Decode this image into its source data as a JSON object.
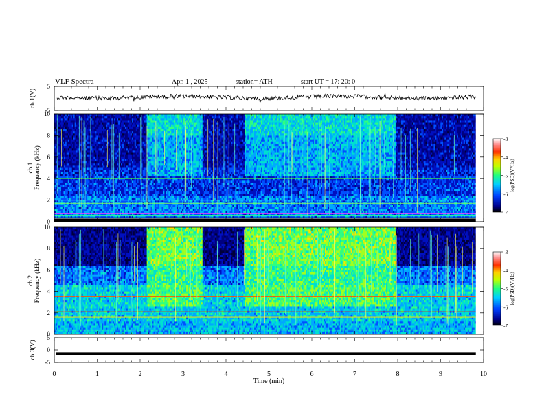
{
  "header": {
    "title": "VLF  Spectra",
    "date": "Apr. 1  , 2025",
    "station": "station= ATH",
    "start": "start  UT  =    17: 20: 0"
  },
  "chart_data": [
    {
      "type": "line",
      "name": "ch1-waveform",
      "ylabel": "ch.1(V)",
      "ylim": [
        -5,
        5
      ],
      "yticks": [
        "5",
        "-5"
      ],
      "xlim": [
        0,
        10
      ]
    },
    {
      "type": "heatmap",
      "name": "ch1-spectrogram",
      "ylabel": "ch.1\nFrequency  (kHz)",
      "ylim": [
        0,
        10
      ],
      "yticks": [
        "0",
        "2",
        "4",
        "6",
        "8",
        "10"
      ],
      "xlim": [
        0,
        10
      ],
      "colorbar": {
        "label": "log(PSD)(V²/Hz)",
        "range": [
          -7,
          -3
        ],
        "ticks": [
          "-7",
          "-6",
          "-5",
          "-4",
          "-3"
        ]
      },
      "bright_intervals_min": [
        [
          2.15,
          3.45
        ],
        [
          4.45,
          7.95
        ]
      ]
    },
    {
      "type": "heatmap",
      "name": "ch2-spectrogram",
      "ylabel": "ch.2\nFrequency  (kHz)",
      "ylim": [
        0,
        10
      ],
      "yticks": [
        "0",
        "2",
        "4",
        "6",
        "8",
        "10"
      ],
      "xlim": [
        0,
        10
      ],
      "colorbar": {
        "label": "log(PSD)(V²/Hz)",
        "range": [
          -7,
          -3
        ],
        "ticks": [
          "-7",
          "-6",
          "-5",
          "-4",
          "-3"
        ]
      },
      "bright_intervals_min": [
        [
          2.15,
          3.45
        ],
        [
          4.45,
          7.95
        ]
      ]
    },
    {
      "type": "line",
      "name": "ch3-waveform",
      "ylabel": "ch.3(V)",
      "ylim": [
        -5,
        5
      ],
      "yticks": [
        "5",
        "0",
        "-5"
      ],
      "xlim": [
        0,
        10
      ],
      "level_v": -1.5
    }
  ],
  "xaxis": {
    "label": "Time  (min)",
    "ticks": [
      "0",
      "1",
      "2",
      "3",
      "4",
      "5",
      "6",
      "7",
      "8",
      "9",
      "10"
    ]
  }
}
